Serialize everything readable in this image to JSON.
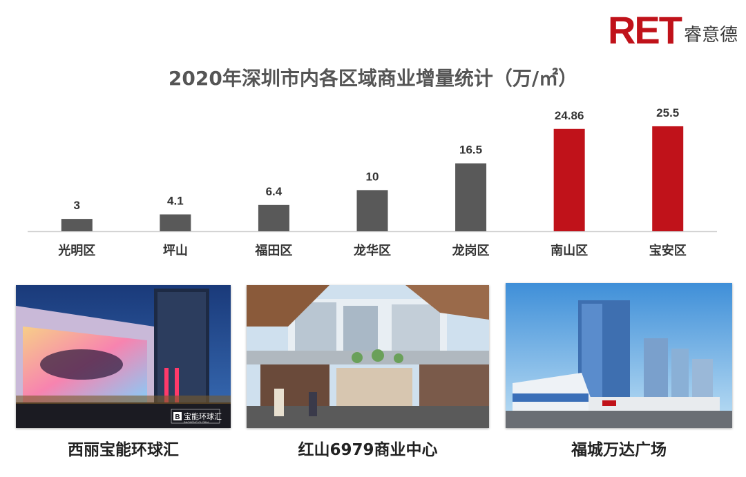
{
  "brand": {
    "mark": "RET",
    "name": "睿意德",
    "color": "#c0121a"
  },
  "chart_data": {
    "type": "bar",
    "title": "2020年深圳市内各区域商业增量统计（万/㎡）",
    "categories": [
      "光明区",
      "坪山",
      "福田区",
      "龙华区",
      "龙岗区",
      "南山区",
      "宝安区"
    ],
    "values": [
      3,
      4.1,
      6.4,
      10,
      16.5,
      24.86,
      25.5
    ],
    "value_labels": [
      "3",
      "4.1",
      "6.4",
      "10",
      "16.5",
      "24.86",
      "25.5"
    ],
    "colors": [
      "#595959",
      "#595959",
      "#595959",
      "#595959",
      "#595959",
      "#c0121a",
      "#c0121a"
    ],
    "ylim": [
      0,
      27
    ],
    "grid": false,
    "legend": "none"
  },
  "photos": [
    {
      "icon": "building-photo",
      "caption": "西丽宝能环球汇",
      "sign_mark": "B",
      "sign_text": "宝能环球汇",
      "sign_sub": "BAONENG GLOBAL"
    },
    {
      "icon": "mall-interior-photo",
      "caption": "红山6979商业中心"
    },
    {
      "icon": "skyscraper-photo",
      "caption": "福城万达广场"
    }
  ]
}
